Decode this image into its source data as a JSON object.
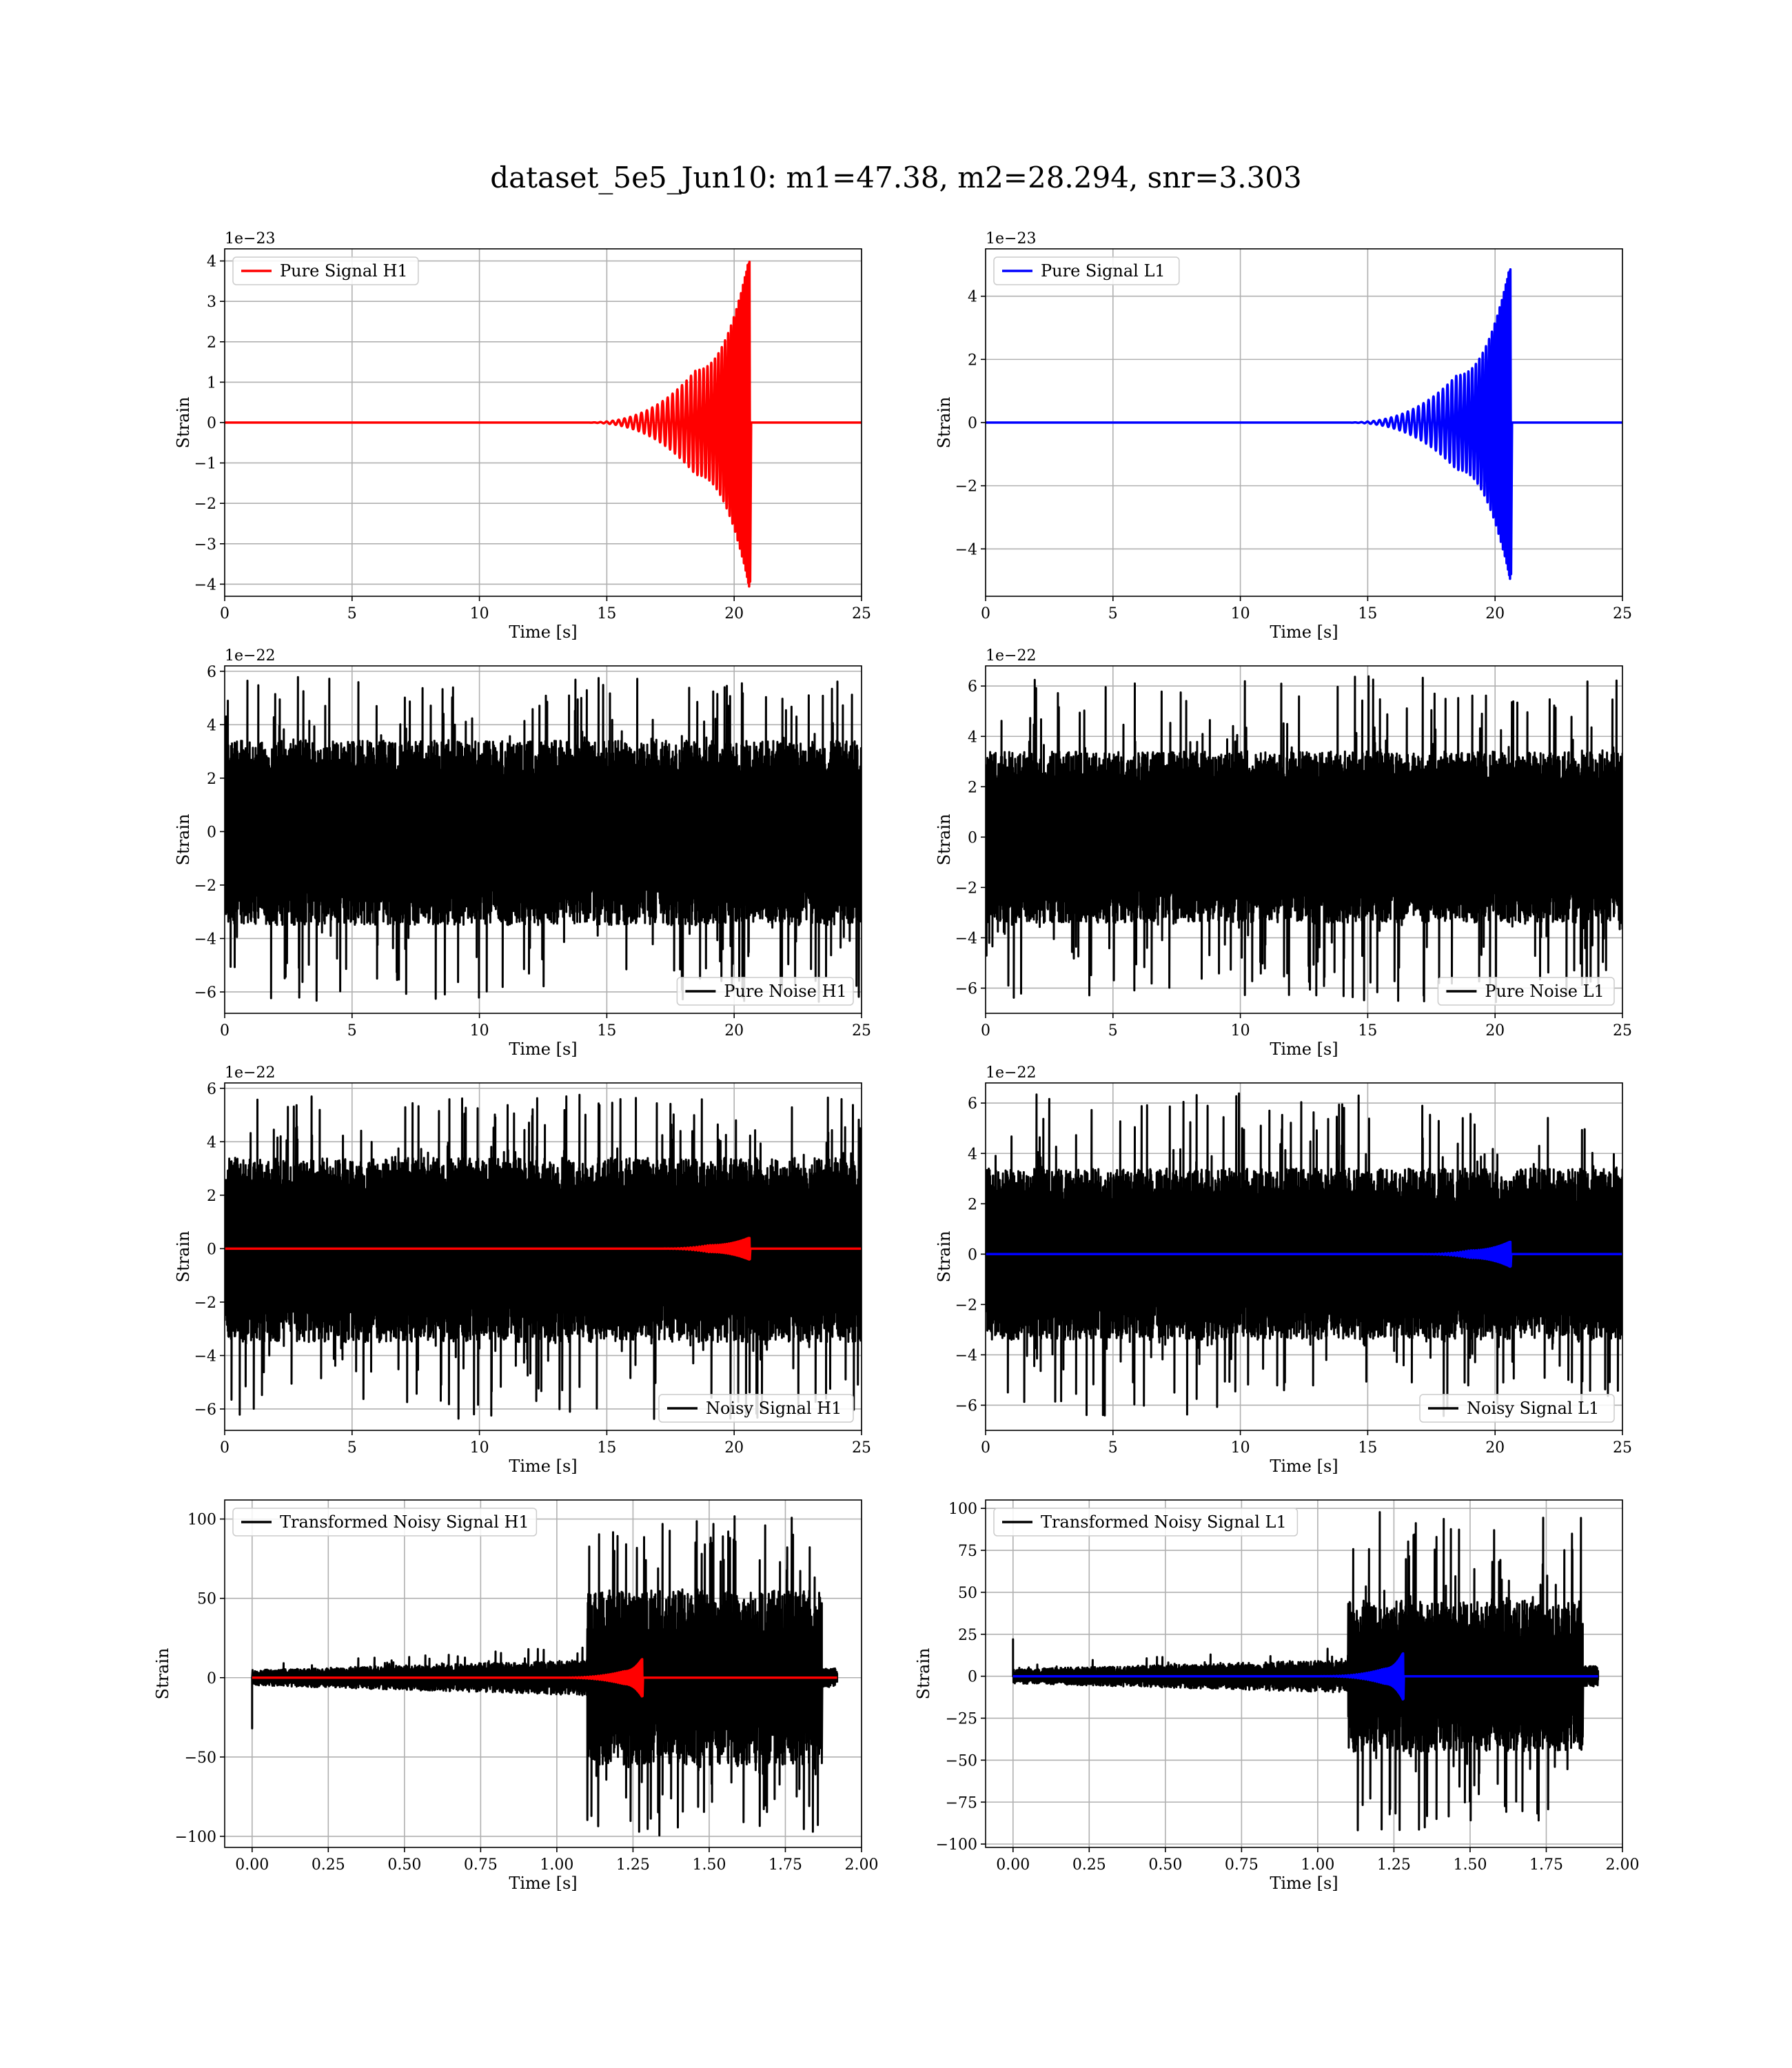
{
  "title": "dataset_5e5_Jun10: m1=47.38, m2=28.294, snr=3.303",
  "colors": {
    "red": "#ff0000",
    "blue": "#0000ff",
    "black": "#000000",
    "grid": "#b0b0b0"
  },
  "chart_data": [
    {
      "type": "line",
      "legend": [
        "Pure Signal H1"
      ],
      "legend_loc": "upper-left",
      "xlabel": "Time [s]",
      "ylabel": "Strain",
      "offset_text": "1e−23",
      "xlim": [
        0,
        25
      ],
      "ylim": [
        -4.3,
        4.3
      ],
      "xticks": [
        0,
        5,
        10,
        15,
        20,
        25
      ],
      "xticklabels": [
        "0",
        "5",
        "10",
        "15",
        "20",
        "25"
      ],
      "yticks": [
        -4,
        -3,
        -2,
        -1,
        0,
        1,
        2,
        3,
        4
      ],
      "yticklabels": [
        "−4",
        "−3",
        "−2",
        "−1",
        "0",
        "1",
        "2",
        "3",
        "4"
      ],
      "grid": true,
      "series": [
        {
          "name": "Pure Signal H1",
          "color": "#ff0000",
          "kind": "chirp",
          "x_range": [
            0,
            25
          ],
          "merger_time": 20.6,
          "start_time": 14.0,
          "peak": 4.1,
          "plateau": 1.3,
          "rise_time": 18.5
        }
      ]
    },
    {
      "type": "line",
      "legend": [
        "Pure Signal L1"
      ],
      "legend_loc": "upper-left",
      "xlabel": "Time [s]",
      "ylabel": "Strain",
      "offset_text": "1e−23",
      "xlim": [
        0,
        25
      ],
      "ylim": [
        -5.5,
        5.5
      ],
      "xticks": [
        0,
        5,
        10,
        15,
        20,
        25
      ],
      "xticklabels": [
        "0",
        "5",
        "10",
        "15",
        "20",
        "25"
      ],
      "yticks": [
        -4,
        -2,
        0,
        2,
        4
      ],
      "yticklabels": [
        "−4",
        "−2",
        "0",
        "2",
        "4"
      ],
      "grid": true,
      "series": [
        {
          "name": "Pure Signal L1",
          "color": "#0000ff",
          "kind": "chirp",
          "x_range": [
            0,
            25
          ],
          "merger_time": 20.6,
          "start_time": 14.0,
          "peak": 5.0,
          "plateau": 1.5,
          "rise_time": 18.5
        }
      ]
    },
    {
      "type": "line",
      "legend": [
        "Pure Noise H1"
      ],
      "legend_loc": "lower-right",
      "xlabel": "Time [s]",
      "ylabel": "Strain",
      "offset_text": "1e−22",
      "xlim": [
        0,
        25
      ],
      "ylim": [
        -6.8,
        6.2
      ],
      "xticks": [
        0,
        5,
        10,
        15,
        20,
        25
      ],
      "xticklabels": [
        "0",
        "5",
        "10",
        "15",
        "20",
        "25"
      ],
      "yticks": [
        -6,
        -4,
        -2,
        0,
        2,
        4,
        6
      ],
      "yticklabels": [
        "−6",
        "−4",
        "−2",
        "0",
        "2",
        "4",
        "6"
      ],
      "grid": true,
      "series": [
        {
          "name": "Pure Noise H1",
          "color": "#000000",
          "kind": "noise",
          "x_range": [
            0,
            25
          ],
          "band": [
            -3.5,
            3.4
          ],
          "max": 5.8,
          "min": -6.4
        }
      ]
    },
    {
      "type": "line",
      "legend": [
        "Pure Noise L1"
      ],
      "legend_loc": "lower-right",
      "xlabel": "Time [s]",
      "ylabel": "Strain",
      "offset_text": "1e−22",
      "xlim": [
        0,
        25
      ],
      "ylim": [
        -7.0,
        6.8
      ],
      "xticks": [
        0,
        5,
        10,
        15,
        20,
        25
      ],
      "xticklabels": [
        "0",
        "5",
        "10",
        "15",
        "20",
        "25"
      ],
      "yticks": [
        -6,
        -4,
        -2,
        0,
        2,
        4,
        6
      ],
      "yticklabels": [
        "−6",
        "−4",
        "−2",
        "0",
        "2",
        "4",
        "6"
      ],
      "grid": true,
      "series": [
        {
          "name": "Pure Noise L1",
          "color": "#000000",
          "kind": "noise",
          "x_range": [
            0,
            25
          ],
          "band": [
            -3.4,
            3.4
          ],
          "max": 6.4,
          "min": -6.6
        }
      ]
    },
    {
      "type": "line",
      "legend": [
        "Noisy Signal H1"
      ],
      "legend_loc": "lower-right",
      "xlabel": "Time [s]",
      "ylabel": "Strain",
      "offset_text": "1e−22",
      "xlim": [
        0,
        25
      ],
      "ylim": [
        -6.8,
        6.2
      ],
      "xticks": [
        0,
        5,
        10,
        15,
        20,
        25
      ],
      "xticklabels": [
        "0",
        "5",
        "10",
        "15",
        "20",
        "25"
      ],
      "yticks": [
        -6,
        -4,
        -2,
        0,
        2,
        4,
        6
      ],
      "yticklabels": [
        "−6",
        "−4",
        "−2",
        "0",
        "2",
        "4",
        "6"
      ],
      "grid": true,
      "series": [
        {
          "name": "Noisy Signal H1",
          "color": "#000000",
          "kind": "noise",
          "x_range": [
            0,
            25
          ],
          "band": [
            -3.5,
            3.4
          ],
          "max": 5.8,
          "min": -6.4
        },
        {
          "name": "",
          "color": "#ff0000",
          "kind": "chirp",
          "x_range": [
            0,
            25
          ],
          "merger_time": 20.6,
          "start_time": 17.0,
          "peak": 0.41,
          "plateau": 0.13,
          "rise_time": 19.0
        }
      ]
    },
    {
      "type": "line",
      "legend": [
        "Noisy Signal L1"
      ],
      "legend_loc": "lower-right",
      "xlabel": "Time [s]",
      "ylabel": "Strain",
      "offset_text": "1e−22",
      "xlim": [
        0,
        25
      ],
      "ylim": [
        -7.0,
        6.8
      ],
      "xticks": [
        0,
        5,
        10,
        15,
        20,
        25
      ],
      "xticklabels": [
        "0",
        "5",
        "10",
        "15",
        "20",
        "25"
      ],
      "yticks": [
        -6,
        -4,
        -2,
        0,
        2,
        4,
        6
      ],
      "yticklabels": [
        "−6",
        "−4",
        "−2",
        "0",
        "2",
        "4",
        "6"
      ],
      "grid": true,
      "series": [
        {
          "name": "Noisy Signal L1",
          "color": "#000000",
          "kind": "noise",
          "x_range": [
            0,
            25
          ],
          "band": [
            -3.4,
            3.4
          ],
          "max": 6.4,
          "min": -6.6
        },
        {
          "name": "",
          "color": "#0000ff",
          "kind": "chirp",
          "x_range": [
            0,
            25
          ],
          "merger_time": 20.6,
          "start_time": 17.0,
          "peak": 0.5,
          "plateau": 0.15,
          "rise_time": 19.0
        }
      ]
    },
    {
      "type": "line",
      "legend": [
        "Transformed Noisy Signal H1"
      ],
      "legend_loc": "upper-left",
      "xlabel": "Time [s]",
      "ylabel": "Strain",
      "offset_text": "",
      "xlim": [
        -0.09,
        2.0
      ],
      "ylim": [
        -107,
        112
      ],
      "xticks": [
        0.0,
        0.25,
        0.5,
        0.75,
        1.0,
        1.25,
        1.5,
        1.75,
        2.0
      ],
      "xticklabels": [
        "0.00",
        "0.25",
        "0.50",
        "0.75",
        "1.00",
        "1.25",
        "1.50",
        "1.75",
        "2.00"
      ],
      "yticks": [
        -100,
        -50,
        0,
        50,
        100
      ],
      "yticklabels": [
        "−100",
        "−50",
        "0",
        "50",
        "100"
      ],
      "grid": true,
      "series": [
        {
          "name": "Transformed Noisy Signal H1",
          "color": "#000000",
          "kind": "whitened",
          "x_range": [
            0,
            1.92
          ],
          "step_time": 1.1,
          "end_time": 1.87,
          "low_band": [
            -8,
            8
          ],
          "high_band": [
            -55,
            55
          ],
          "max": 107,
          "min": -100,
          "first_spike": -32
        },
        {
          "name": "",
          "color": "#ff0000",
          "kind": "chirp",
          "x_range": [
            0,
            1.92
          ],
          "merger_time": 1.28,
          "start_time": 1.0,
          "peak": 12,
          "plateau": 4,
          "rise_time": 1.22
        }
      ]
    },
    {
      "type": "line",
      "legend": [
        "Transformed Noisy Signal L1"
      ],
      "legend_loc": "upper-left",
      "xlabel": "Time [s]",
      "ylabel": "Strain",
      "offset_text": "",
      "xlim": [
        -0.09,
        2.0
      ],
      "ylim": [
        -102,
        105
      ],
      "xticks": [
        0.0,
        0.25,
        0.5,
        0.75,
        1.0,
        1.25,
        1.5,
        1.75,
        2.0
      ],
      "xticklabels": [
        "0.00",
        "0.25",
        "0.50",
        "0.75",
        "1.00",
        "1.25",
        "1.50",
        "1.75",
        "2.00"
      ],
      "yticks": [
        -100,
        -75,
        -50,
        -25,
        0,
        25,
        50,
        75,
        100
      ],
      "yticklabels": [
        "−100",
        "−75",
        "−50",
        "−25",
        "0",
        "25",
        "50",
        "75",
        "100"
      ],
      "grid": true,
      "series": [
        {
          "name": "Transformed Noisy Signal L1",
          "color": "#000000",
          "kind": "whitened",
          "x_range": [
            0,
            1.92
          ],
          "step_time": 1.1,
          "end_time": 1.87,
          "low_band": [
            -7,
            7
          ],
          "high_band": [
            -45,
            45
          ],
          "max": 100,
          "min": -93,
          "first_spike": 22
        },
        {
          "name": "",
          "color": "#0000ff",
          "kind": "chirp",
          "x_range": [
            0,
            1.92
          ],
          "merger_time": 1.28,
          "start_time": 1.0,
          "peak": 14,
          "plateau": 4.5,
          "rise_time": 1.22
        }
      ]
    }
  ]
}
